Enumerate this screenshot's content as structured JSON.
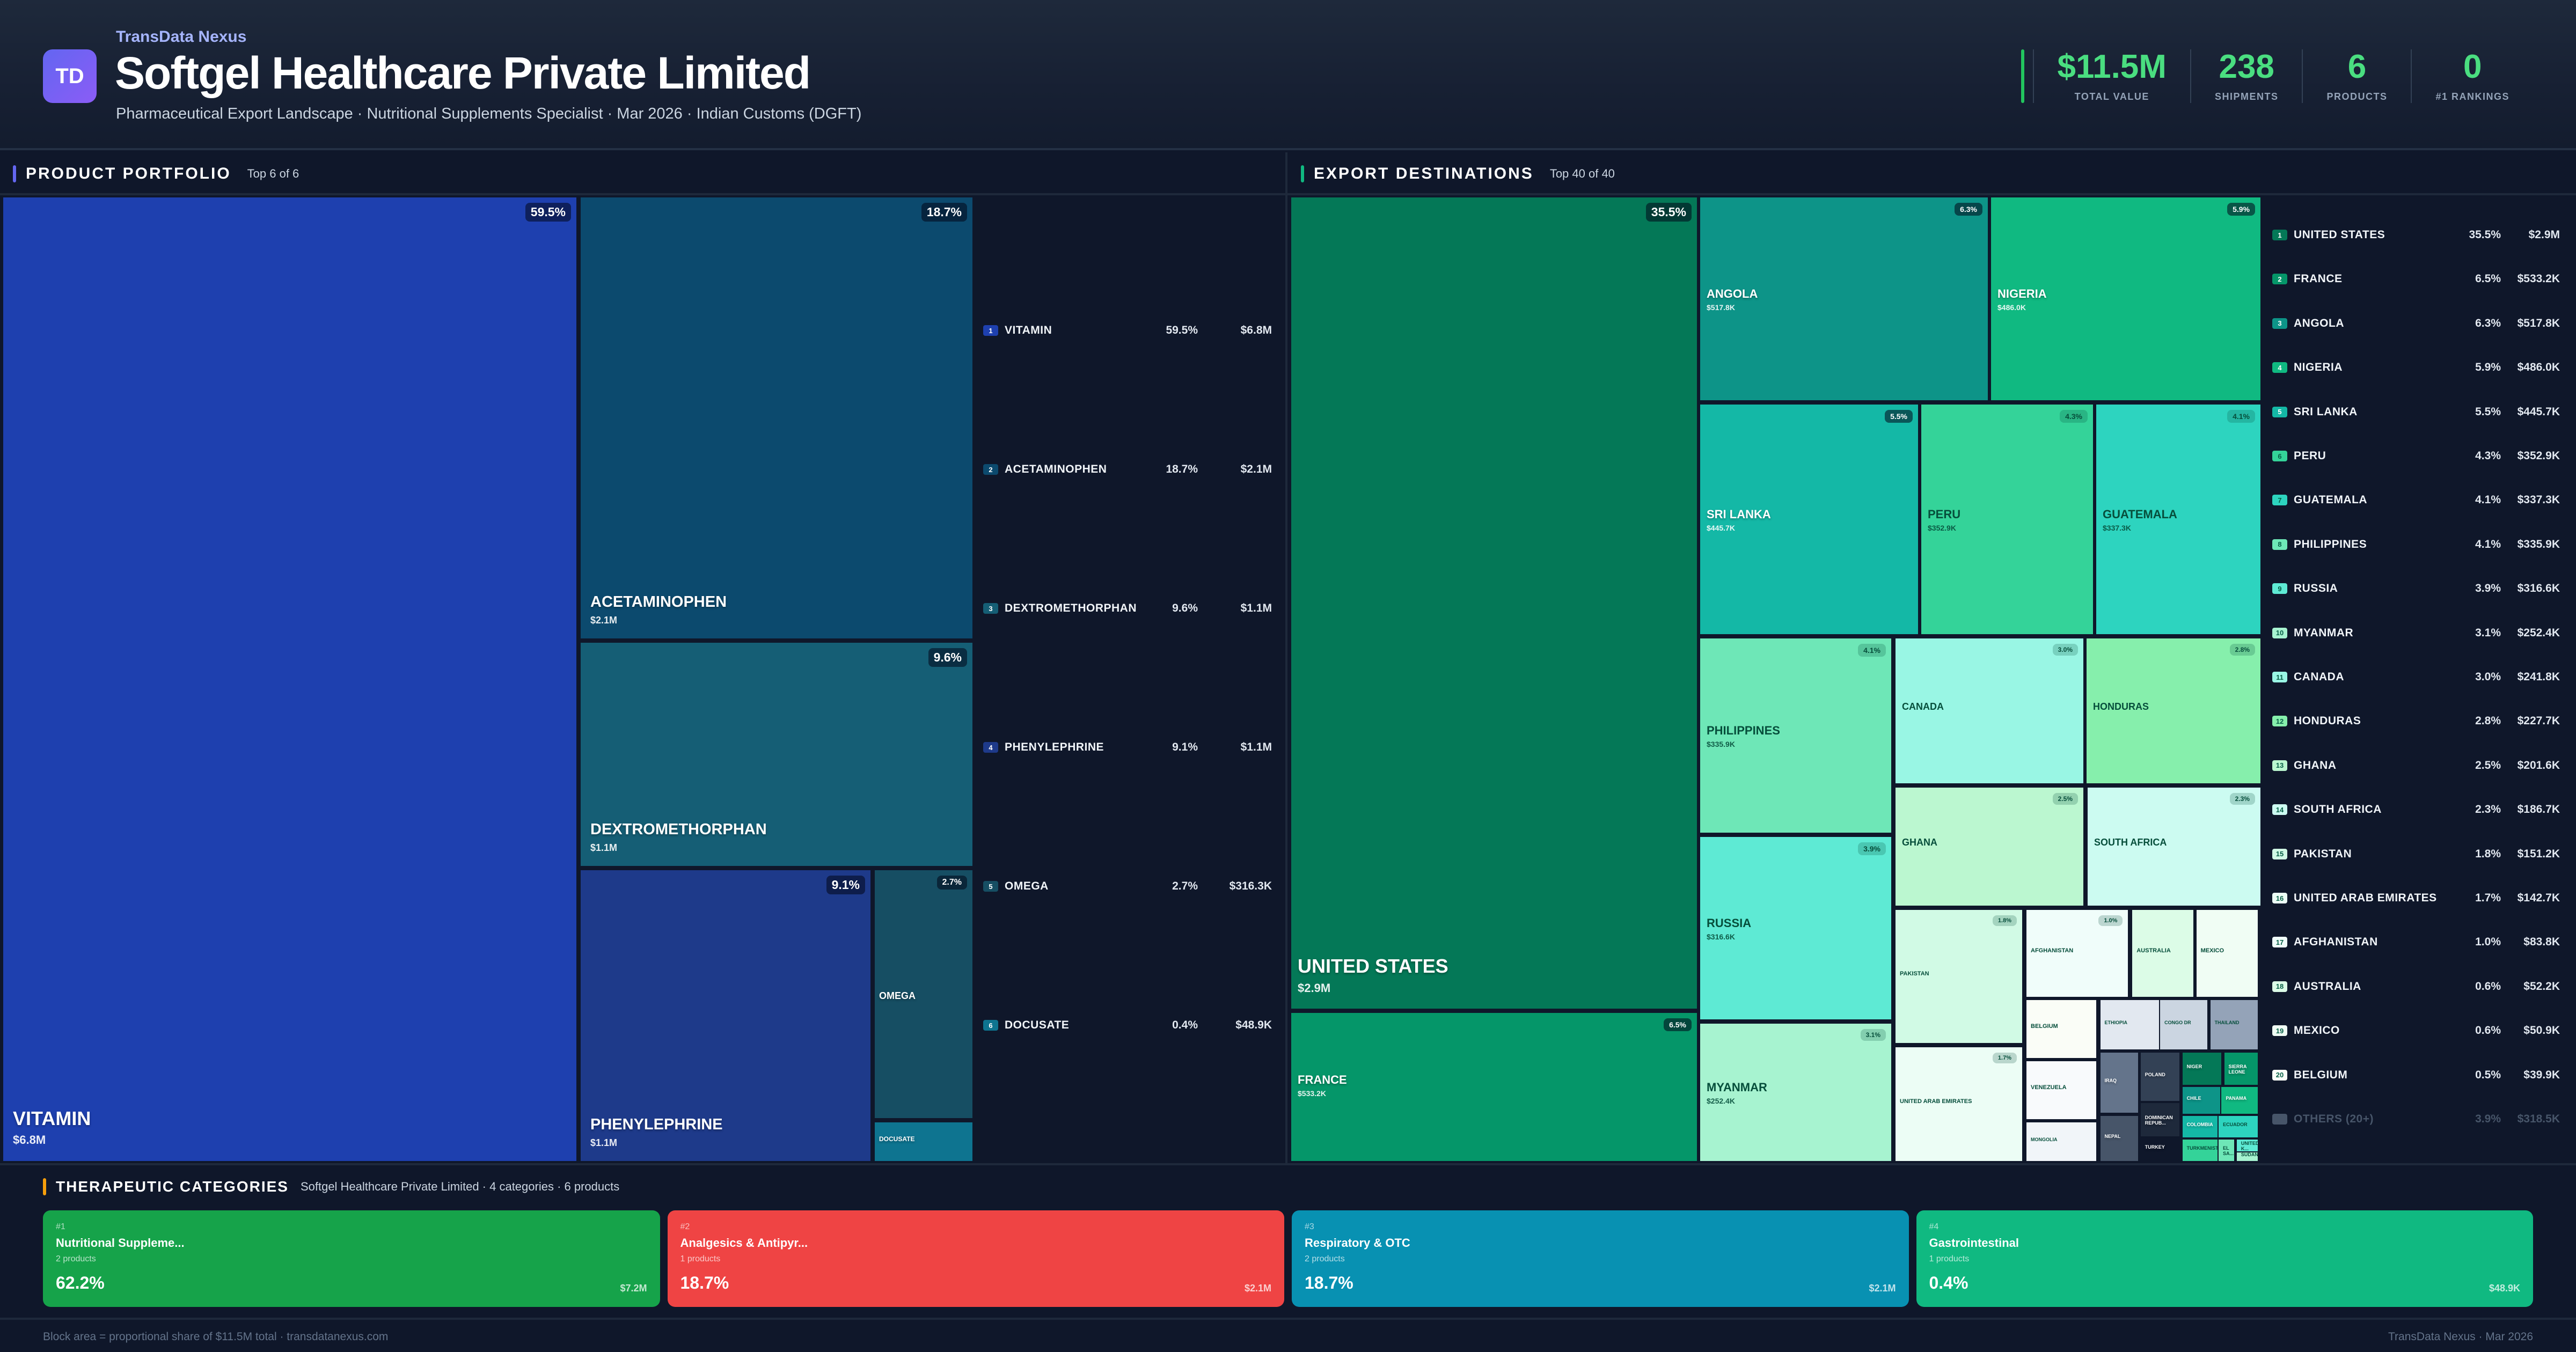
{
  "header": {
    "logo_text": "TD",
    "brand": "TransData Nexus",
    "title": "Softgel Healthcare Private Limited",
    "subtitle": "Pharmaceutical Export Landscape · Nutritional Supplements Specialist · Mar 2026 · Indian Customs (DGFT)",
    "kpis": [
      {
        "value": "$11.5M",
        "label": "TOTAL VALUE"
      },
      {
        "value": "238",
        "label": "SHIPMENTS"
      },
      {
        "value": "6",
        "label": "PRODUCTS"
      },
      {
        "value": "0",
        "label": "#1 RANKINGS"
      }
    ]
  },
  "products_panel": {
    "title": "PRODUCT PORTFOLIO",
    "subtitle": "Top 6 of 6",
    "accent": "#6366f1"
  },
  "destinations_panel": {
    "title": "EXPORT DESTINATIONS",
    "subtitle": "Top 40 of 40",
    "accent": "#10b981"
  },
  "chart_data": [
    {
      "type": "treemap",
      "title": "Product Portfolio",
      "unit": "USD",
      "items": [
        {
          "rank": 1,
          "name": "VITAMIN",
          "share_pct": 59.5,
          "value_label": "$6.8M",
          "value": 6800000,
          "color": "#1e40af"
        },
        {
          "rank": 2,
          "name": "ACETAMINOPHEN",
          "share_pct": 18.7,
          "value_label": "$2.1M",
          "value": 2100000,
          "color": "#0c4a6e"
        },
        {
          "rank": 3,
          "name": "DEXTROMETHORPHAN",
          "share_pct": 9.6,
          "value_label": "$1.1M",
          "value": 1100000,
          "color": "#155e75"
        },
        {
          "rank": 4,
          "name": "PHENYLEPHRINE",
          "share_pct": 9.1,
          "value_label": "$1.1M",
          "value": 1050000,
          "color": "#1e3a8a"
        },
        {
          "rank": 5,
          "name": "OMEGA",
          "share_pct": 2.7,
          "value_label": "$316.3K",
          "value": 316300,
          "color": "#164e63"
        },
        {
          "rank": 6,
          "name": "DOCUSATE",
          "share_pct": 0.4,
          "value_label": "$48.9K",
          "value": 48900,
          "color": "#0e7490"
        }
      ]
    },
    {
      "type": "treemap",
      "title": "Export Destinations",
      "unit": "USD",
      "items": [
        {
          "rank": 1,
          "name": "UNITED STATES",
          "share_pct": 35.5,
          "value_label": "$2.9M",
          "color": "#047857"
        },
        {
          "rank": 2,
          "name": "FRANCE",
          "share_pct": 6.5,
          "value_label": "$533.2K",
          "color": "#059669"
        },
        {
          "rank": 3,
          "name": "ANGOLA",
          "share_pct": 6.3,
          "value_label": "$517.8K",
          "color": "#0d9488"
        },
        {
          "rank": 4,
          "name": "NIGERIA",
          "share_pct": 5.9,
          "value_label": "$486.0K",
          "color": "#10b981"
        },
        {
          "rank": 5,
          "name": "SRI LANKA",
          "share_pct": 5.5,
          "value_label": "$445.7K",
          "color": "#14b8a6"
        },
        {
          "rank": 6,
          "name": "PERU",
          "share_pct": 4.3,
          "value_label": "$352.9K",
          "color": "#34d399"
        },
        {
          "rank": 7,
          "name": "GUATEMALA",
          "share_pct": 4.1,
          "value_label": "$337.3K",
          "color": "#2dd4bf"
        },
        {
          "rank": 8,
          "name": "PHILIPPINES",
          "share_pct": 4.1,
          "value_label": "$335.9K",
          "color": "#6ee7b7"
        },
        {
          "rank": 9,
          "name": "RUSSIA",
          "share_pct": 3.9,
          "value_label": "$316.6K",
          "color": "#5eead4"
        },
        {
          "rank": 10,
          "name": "MYANMAR",
          "share_pct": 3.1,
          "value_label": "$252.4K",
          "color": "#a7f3d0"
        },
        {
          "rank": 11,
          "name": "CANADA",
          "share_pct": 3.0,
          "value_label": "$241.8K",
          "color": "#99f6e4"
        },
        {
          "rank": 12,
          "name": "HONDURAS",
          "share_pct": 2.8,
          "value_label": "$227.7K",
          "color": "#86efac"
        },
        {
          "rank": 13,
          "name": "GHANA",
          "share_pct": 2.5,
          "value_label": "$201.6K",
          "color": "#bbf7d0"
        },
        {
          "rank": 14,
          "name": "SOUTH AFRICA",
          "share_pct": 2.3,
          "value_label": "$186.7K",
          "color": "#ccfbf1"
        },
        {
          "rank": 15,
          "name": "PAKISTAN",
          "share_pct": 1.8,
          "value_label": "$151.2K",
          "color": "#d1fae5"
        },
        {
          "rank": 16,
          "name": "UNITED ARAB EMIRATES",
          "share_pct": 1.7,
          "value_label": "$142.7K",
          "color": "#ecfdf5"
        },
        {
          "rank": 17,
          "name": "AFGHANISTAN",
          "share_pct": 1.0,
          "value_label": "$83.8K",
          "color": "#f0fdfa"
        },
        {
          "rank": 18,
          "name": "AUSTRALIA",
          "share_pct": 0.6,
          "value_label": "$52.2K",
          "color": "#dcfce7"
        },
        {
          "rank": 19,
          "name": "MEXICO",
          "share_pct": 0.6,
          "value_label": "$50.9K",
          "color": "#f0fdf4"
        },
        {
          "rank": 20,
          "name": "BELGIUM",
          "share_pct": 0.5,
          "value_label": "$39.9K",
          "color": "#fafdf7"
        },
        {
          "rank": null,
          "name": "VENEZUELA",
          "color": "#f8fafc"
        },
        {
          "rank": null,
          "name": "MONGOLIA",
          "color": "#f1f5f9"
        },
        {
          "rank": null,
          "name": "ETHIOPIA",
          "color": "#e2e8f0"
        },
        {
          "rank": null,
          "name": "CONGO DR",
          "color": "#cbd5e1"
        },
        {
          "rank": null,
          "name": "THAILAND",
          "color": "#94a3b8"
        },
        {
          "rank": null,
          "name": "IRAQ",
          "color": "#64748b"
        },
        {
          "rank": null,
          "name": "NEPAL",
          "color": "#475569"
        },
        {
          "rank": null,
          "name": "POLAND",
          "color": "#334155"
        },
        {
          "rank": null,
          "name": "DOMINICAN REPUB...",
          "color": "#1e293b"
        },
        {
          "rank": null,
          "name": "TURKEY",
          "color": "#0f172a"
        },
        {
          "rank": null,
          "name": "NIGER",
          "color": "#047857"
        },
        {
          "rank": null,
          "name": "SIERRA LEONE",
          "color": "#059669"
        },
        {
          "rank": null,
          "name": "CHILE",
          "color": "#0d9488"
        },
        {
          "rank": null,
          "name": "PANAMA",
          "color": "#10b981"
        },
        {
          "rank": null,
          "name": "COLOMBIA",
          "color": "#14b8a6"
        },
        {
          "rank": null,
          "name": "ECUADOR",
          "color": "#2dd4bf"
        },
        {
          "rank": null,
          "name": "TURKMENIST",
          "color": "#34d399"
        },
        {
          "rank": null,
          "name": "EL SA...",
          "color": "#6ee7b7"
        },
        {
          "rank": null,
          "name": "UNITED K...",
          "color": "#5eead4"
        },
        {
          "rank": null,
          "name": "SUDAN",
          "color": "#a7f3d0"
        }
      ],
      "others": {
        "name": "OTHERS (20+)",
        "share_pct": 3.9,
        "value_label": "$318.5K",
        "color": "#475569"
      }
    }
  ],
  "categories": {
    "title": "THERAPEUTIC CATEGORIES",
    "subtitle": "Softgel Healthcare Private Limited · 4 categories · 6 products",
    "items": [
      {
        "rank": "#1",
        "name": "Nutritional Suppleme...",
        "count": "2 products",
        "pct": "62.2%",
        "value": "$7.2M",
        "color": "#16a34a"
      },
      {
        "rank": "#2",
        "name": "Analgesics & Antipyr...",
        "count": "1 products",
        "pct": "18.7%",
        "value": "$2.1M",
        "color": "#ef4444"
      },
      {
        "rank": "#3",
        "name": "Respiratory & OTC",
        "count": "2 products",
        "pct": "18.7%",
        "value": "$2.1M",
        "color": "#0891b2"
      },
      {
        "rank": "#4",
        "name": "Gastrointestinal",
        "count": "1 products",
        "pct": "0.4%",
        "value": "$48.9K",
        "color": "#10b981"
      }
    ]
  },
  "footer": {
    "left": "Block area = proportional share of $11.5M total · transdatanexus.com",
    "right": "TransData Nexus · Mar 2026"
  }
}
